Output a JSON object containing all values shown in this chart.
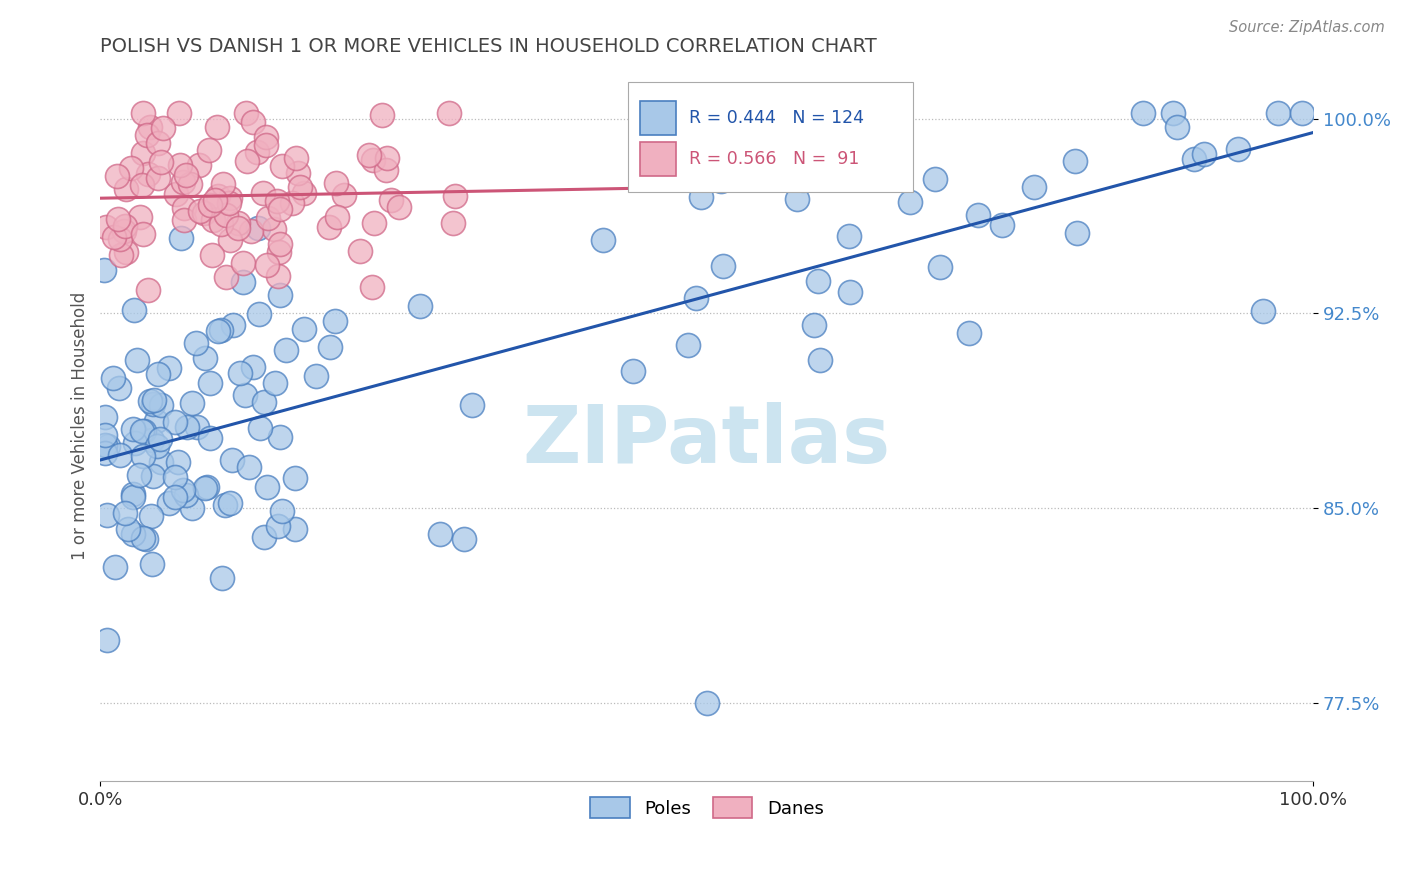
{
  "title": "POLISH VS DANISH 1 OR MORE VEHICLES IN HOUSEHOLD CORRELATION CHART",
  "source_text": "Source: ZipAtlas.com",
  "ylabel": "1 or more Vehicles in Household",
  "xlim": [
    0.0,
    1.0
  ],
  "ylim": [
    0.745,
    1.018
  ],
  "xticks": [
    0.0,
    1.0
  ],
  "xticklabels": [
    "0.0%",
    "100.0%"
  ],
  "ytick_values": [
    0.775,
    0.85,
    0.925,
    1.0
  ],
  "ytick_labels": [
    "77.5%",
    "85.0%",
    "92.5%",
    "100.0%"
  ],
  "poles_face_color": "#a8c8e8",
  "poles_edge_color": "#4a7fc0",
  "danes_face_color": "#f0b0c0",
  "danes_edge_color": "#d06888",
  "poles_line_color": "#2255aa",
  "danes_line_color": "#cc5577",
  "watermark_color": "#cce4f0",
  "ytick_color": "#4488cc",
  "title_color": "#444444",
  "source_color": "#888888",
  "legend_border_color": "#aaaaaa",
  "legend_r_poles_color": "#2255aa",
  "legend_r_danes_color": "#cc5577"
}
